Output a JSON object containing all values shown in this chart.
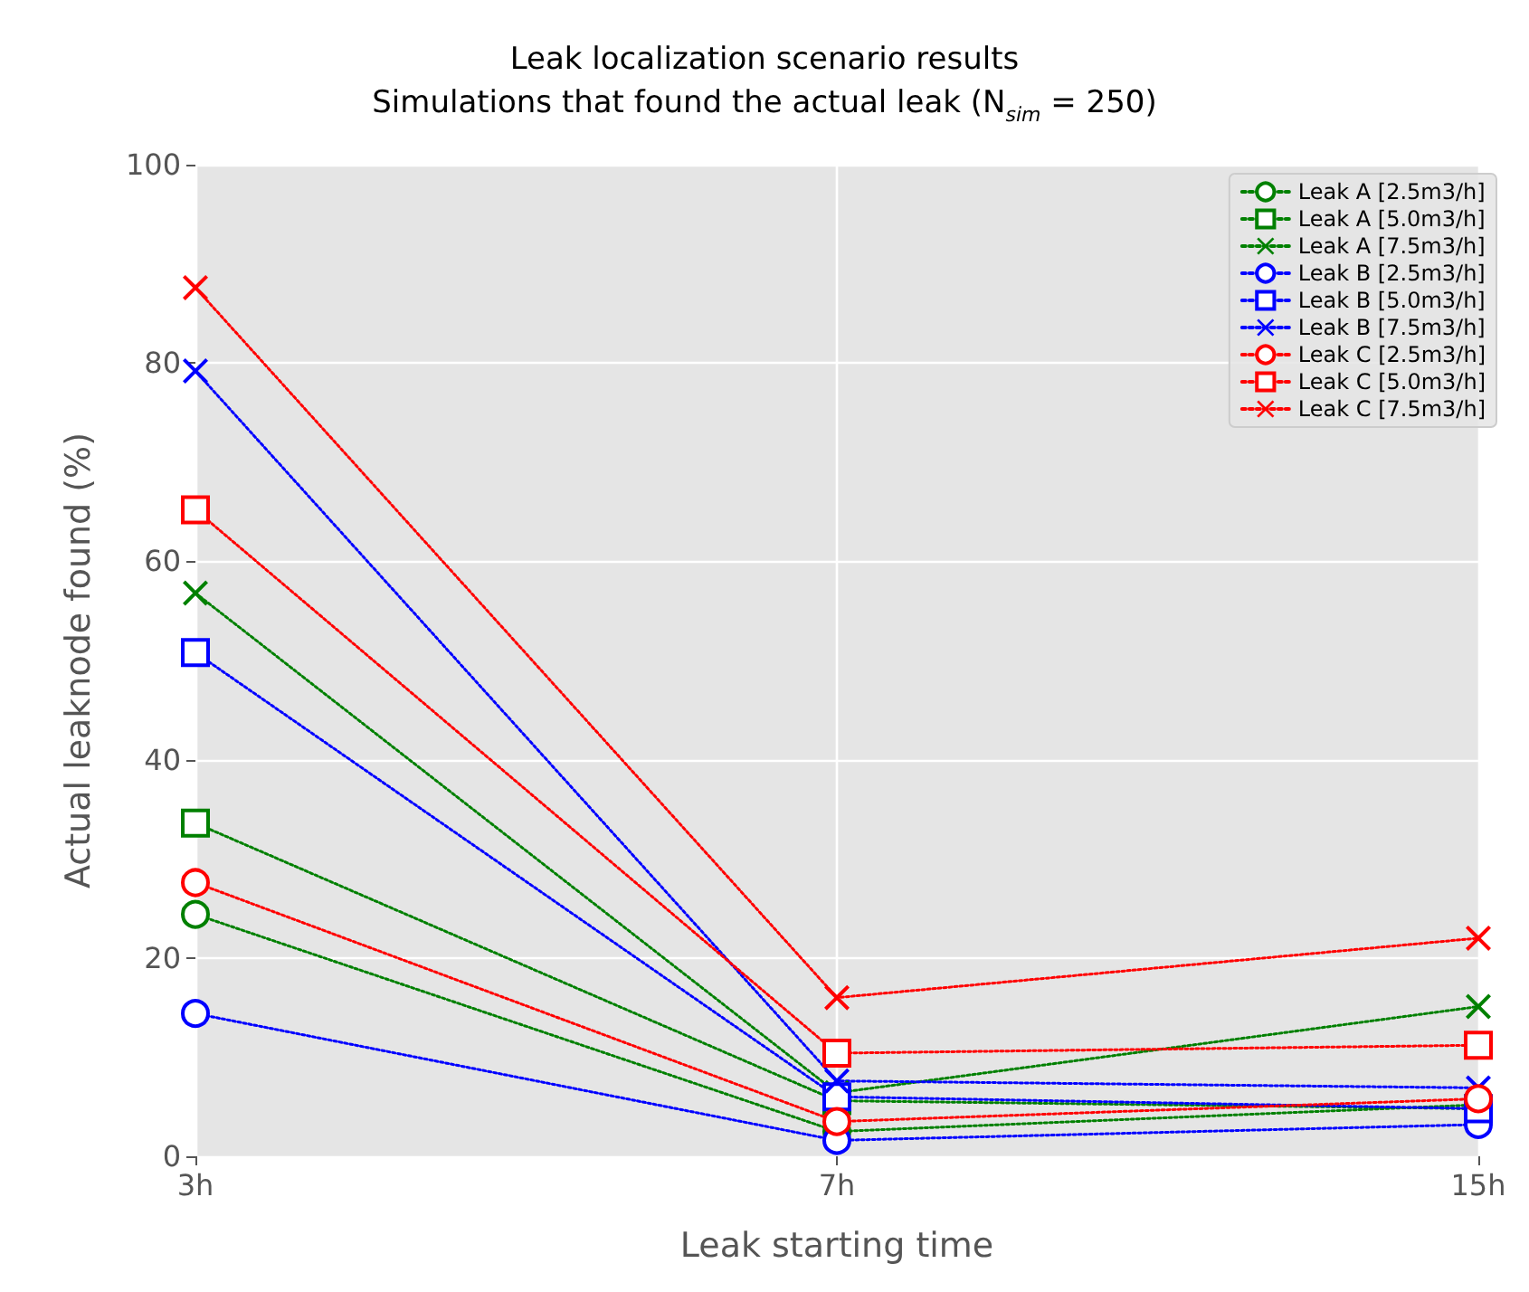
{
  "chart_data": {
    "type": "line",
    "title": "Leak localization scenario results",
    "subtitle": "Simulations that found the actual leak (N$_{sim}$ = 250)",
    "xlabel": "Leak starting time",
    "ylabel": "Actual leaknode found (%)",
    "categories": [
      "3h",
      "7h",
      "15h"
    ],
    "ylim": [
      0,
      100
    ],
    "yticks": [
      0,
      20,
      40,
      60,
      80,
      100
    ],
    "grid": true,
    "legend": "top right",
    "line_style": "dotted",
    "series": [
      {
        "name": "Leak A [2.5m3/h]",
        "color": "#008000",
        "marker": "circle",
        "values": [
          24.4,
          2.5,
          5.2
        ]
      },
      {
        "name": "Leak A [5.0m3/h]",
        "color": "#008000",
        "marker": "square",
        "values": [
          33.6,
          5.6,
          4.8
        ]
      },
      {
        "name": "Leak A [7.5m3/h]",
        "color": "#008000",
        "marker": "cross",
        "values": [
          56.8,
          6.4,
          15.1
        ]
      },
      {
        "name": "Leak B [2.5m3/h]",
        "color": "#0000ff",
        "marker": "circle",
        "values": [
          14.4,
          1.6,
          3.2
        ]
      },
      {
        "name": "Leak B [5.0m3/h]",
        "color": "#0000ff",
        "marker": "square",
        "values": [
          50.8,
          6.0,
          4.8
        ]
      },
      {
        "name": "Leak B [7.5m3/h]",
        "color": "#0000ff",
        "marker": "cross",
        "values": [
          79.2,
          7.6,
          6.9
        ]
      },
      {
        "name": "Leak C [2.5m3/h]",
        "color": "#ff0000",
        "marker": "circle",
        "values": [
          27.6,
          3.5,
          5.8
        ]
      },
      {
        "name": "Leak C [5.0m3/h]",
        "color": "#ff0000",
        "marker": "square",
        "values": [
          65.2,
          10.4,
          11.2
        ]
      },
      {
        "name": "Leak C [7.5m3/h]",
        "color": "#ff0000",
        "marker": "cross",
        "values": [
          87.6,
          16.0,
          22.0
        ]
      }
    ]
  }
}
